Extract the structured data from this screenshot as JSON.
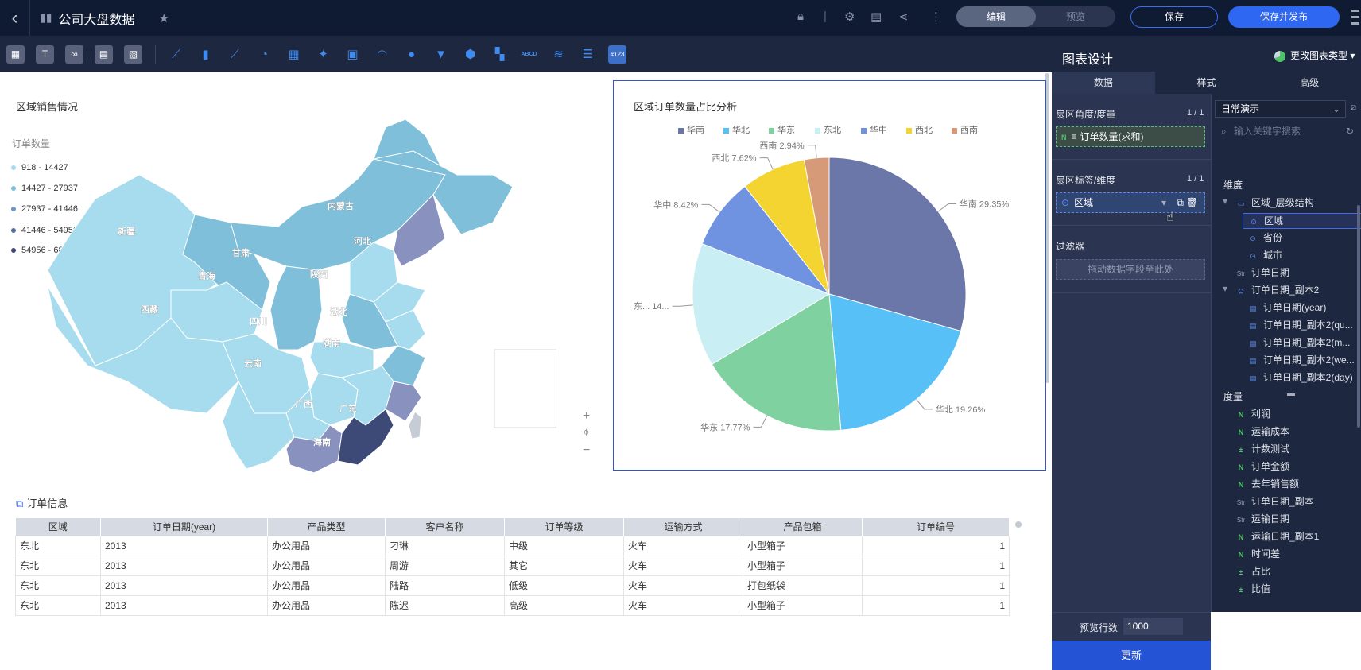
{
  "app": {
    "title": "公司大盘数据"
  },
  "header": {
    "mode_edit": "编辑",
    "mode_preview": "预览",
    "save": "保存",
    "save_publish": "保存并发布"
  },
  "toolbar": {
    "icon_text_labels": [
      "T",
      "ABCD",
      "#123"
    ]
  },
  "map_chart": {
    "title": "区域销售情况",
    "legend_title": "订单数量",
    "legend": [
      {
        "label": "918 - 14427",
        "color": "#a6dcee"
      },
      {
        "label": "14427 - 27937",
        "color": "#7fbfda"
      },
      {
        "label": "27937 - 41446",
        "color": "#6c93c3"
      },
      {
        "label": "41446 - 54956",
        "color": "#566ea0"
      },
      {
        "label": "54956 - 68466",
        "color": "#3d4a77"
      }
    ],
    "provinces": [
      "新疆",
      "内蒙古",
      "甘肃",
      "河北",
      "青海",
      "陕西",
      "西藏",
      "四川",
      "湖北",
      "湖南",
      "云南",
      "广西",
      "广东",
      "海南"
    ],
    "controls": {
      "zoom_in": "+",
      "locate": "⌖",
      "zoom_out": "−"
    }
  },
  "chart_data": {
    "type": "pie",
    "title": "区域订单数量占比分析",
    "legend_placement": "top",
    "categories": [
      "华南",
      "华北",
      "华东",
      "东北",
      "华中",
      "西北",
      "西南"
    ],
    "values": [
      29.35,
      19.26,
      17.77,
      14.6,
      8.42,
      7.62,
      2.94
    ],
    "value_labels": [
      "华南 29.35%",
      "华北 19.26%",
      "华东 17.77%",
      "东... 14...",
      "华中 8.42%",
      "西北 7.62%",
      "西南 2.94%"
    ],
    "colors": [
      "#6b77a8",
      "#57c0f7",
      "#7fd19f",
      "#c9eff5",
      "#6f93e0",
      "#f3d430",
      "#d79a78"
    ]
  },
  "table": {
    "title": "订单信息",
    "columns": [
      "区域",
      "订单日期(year)",
      "产品类型",
      "客户名称",
      "订单等级",
      "运输方式",
      "产品包箱",
      "订单编号"
    ],
    "rows": [
      [
        "东北",
        "2013",
        "办公用品",
        "刁琳",
        "中级",
        "火车",
        "小型箱子",
        "1"
      ],
      [
        "东北",
        "2013",
        "办公用品",
        "周游",
        "其它",
        "火车",
        "小型箱子",
        "1"
      ],
      [
        "东北",
        "2013",
        "办公用品",
        "陆路",
        "低级",
        "火车",
        "打包纸袋",
        "1"
      ],
      [
        "东北",
        "2013",
        "办公用品",
        "陈迟",
        "高级",
        "火车",
        "小型箱子",
        "1"
      ]
    ]
  },
  "panel": {
    "title": "图表设计",
    "change_type": "更改图表类型",
    "tabs": [
      "数据",
      "样式",
      "高级"
    ],
    "sections": {
      "angle": {
        "label": "扇区角度/度量",
        "count": "1 / 1",
        "chip": "订单数量(求和)"
      },
      "label": {
        "label": "扇区标签/维度",
        "count": "1 / 1",
        "chip": "区域"
      },
      "filter": {
        "label": "过滤器",
        "drop": "拖动数据字段至此处"
      }
    },
    "preview_label": "预览行数",
    "preview_value": "1000",
    "update": "更新"
  },
  "fields": {
    "dataset": "日常演示",
    "search_placeholder": "输入关键字搜索",
    "dimension_header": "维度",
    "dimensions": [
      "区域_层级结构",
      "区域",
      "省份",
      "城市",
      "订单日期",
      "订单日期_副本2",
      "订单日期(year)",
      "订单日期_副本2(qu...",
      "订单日期_副本2(m...",
      "订单日期_副本2(we...",
      "订单日期_副本2(day)"
    ],
    "measure_header": "度量",
    "measures": [
      "利润",
      "运输成本",
      "计数测试",
      "订单金额",
      "去年销售额",
      "订单日期_副本",
      "运输日期",
      "运输日期_副本1",
      "时间差",
      "占比",
      "比值"
    ]
  }
}
